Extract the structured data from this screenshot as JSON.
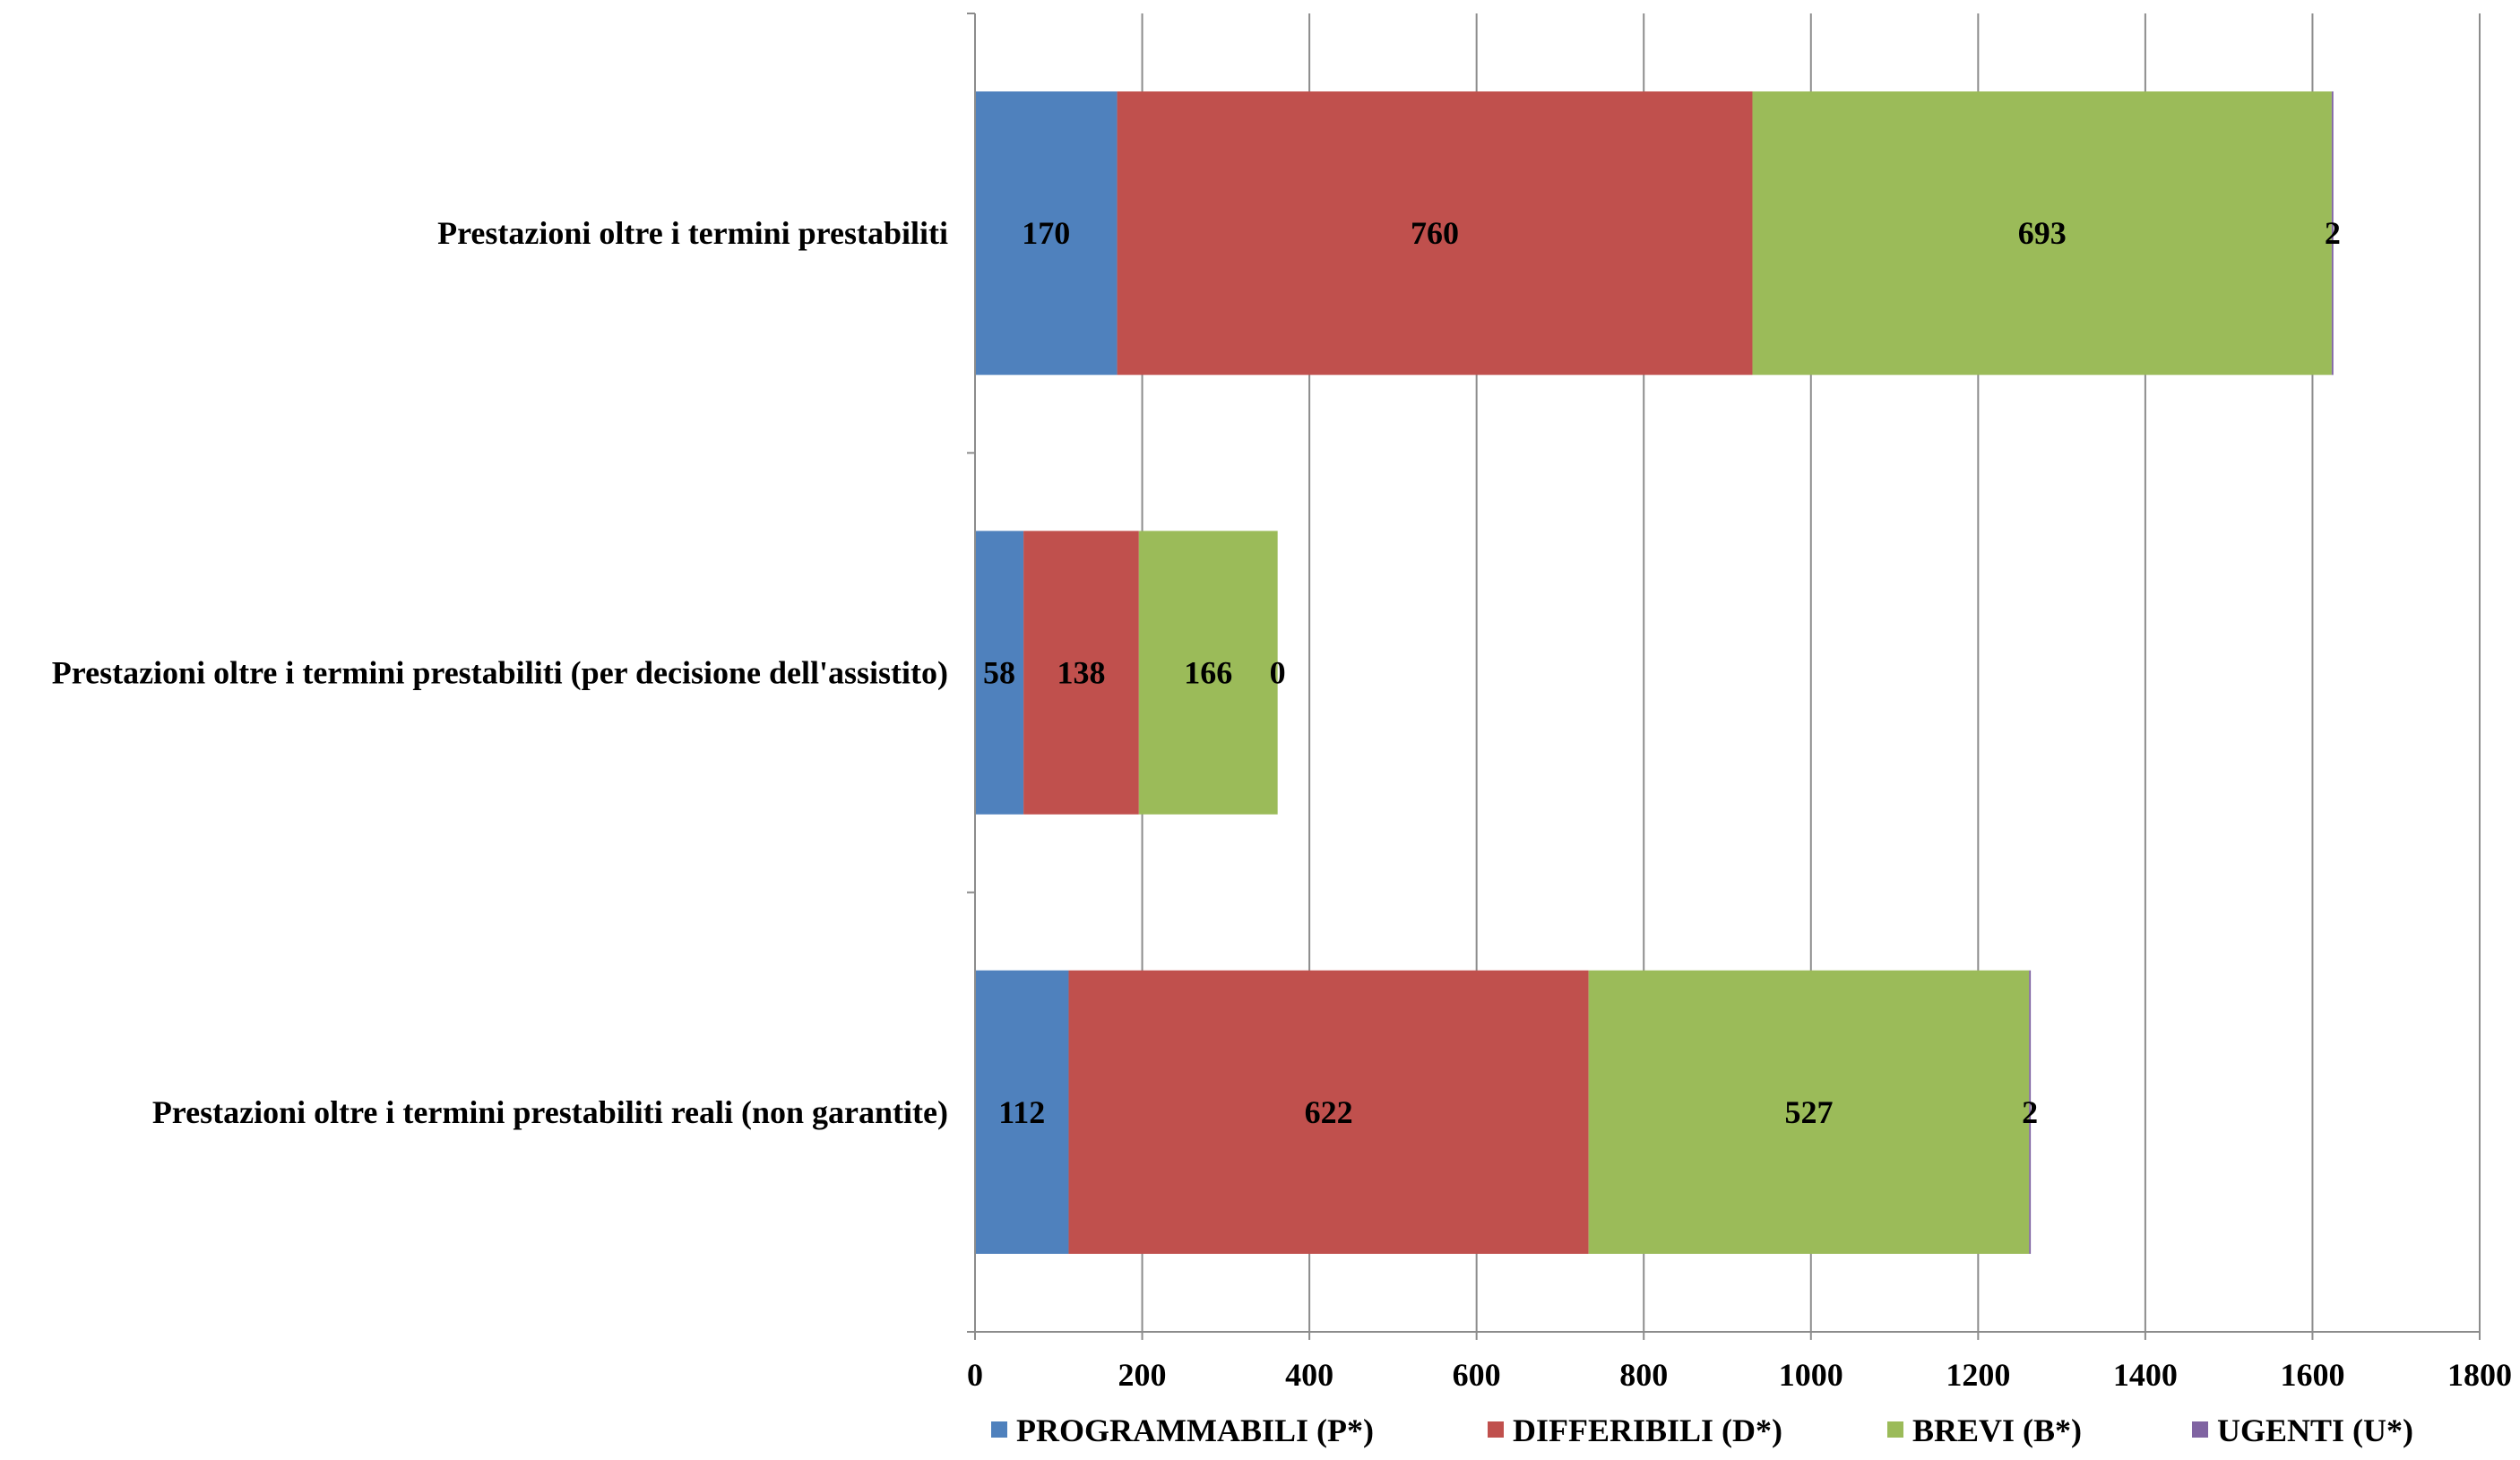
{
  "chart_data": {
    "type": "bar",
    "orientation": "horizontal",
    "stacked": true,
    "title": "",
    "xlabel": "",
    "ylabel": "",
    "xlim": [
      0,
      1800
    ],
    "x_ticks": [
      0,
      200,
      400,
      600,
      800,
      1000,
      1200,
      1400,
      1600,
      1800
    ],
    "grid": true,
    "legend_position": "bottom",
    "categories": [
      "Prestazioni oltre i termini prestabiliti",
      "Prestazioni oltre i termini prestabiliti (per decisione dell'assistito)",
      "Prestazioni oltre i termini prestabiliti reali (non garantite)"
    ],
    "series": [
      {
        "name": "PROGRAMMABILI (P*)",
        "color": "#4F81BD",
        "values": [
          170,
          58,
          112
        ]
      },
      {
        "name": "DIFFERIBILI (D*)",
        "color": "#C0504D",
        "values": [
          760,
          138,
          622
        ]
      },
      {
        "name": "BREVI (B*)",
        "color": "#9BBB59",
        "values": [
          693,
          166,
          527
        ]
      },
      {
        "name": "UGENTI (U*)",
        "color": "#8064A2",
        "values": [
          2,
          0,
          2
        ]
      }
    ]
  }
}
